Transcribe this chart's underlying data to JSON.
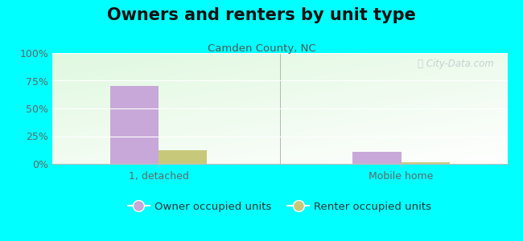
{
  "title": "Owners and renters by unit type",
  "subtitle": "Camden County, NC",
  "categories": [
    "1, detached",
    "Mobile home"
  ],
  "owner_values": [
    70.5,
    11.0
  ],
  "renter_values": [
    12.0,
    1.5
  ],
  "owner_color": "#c8a8d8",
  "renter_color": "#c8c87a",
  "yticks": [
    0,
    25,
    50,
    75,
    100
  ],
  "ytick_labels": [
    "0%",
    "25%",
    "50%",
    "75%",
    "100%"
  ],
  "ylim": [
    0,
    100
  ],
  "bar_width": 0.32,
  "bg_color": "#00FFFF",
  "legend_owner": "Owner occupied units",
  "legend_renter": "Renter occupied units",
  "title_fontsize": 15,
  "subtitle_fontsize": 9.5,
  "tick_fontsize": 9,
  "legend_fontsize": 9.5,
  "subtitle_color": "#555555",
  "tick_color": "#666666",
  "watermark_color": "#c0c8cc"
}
